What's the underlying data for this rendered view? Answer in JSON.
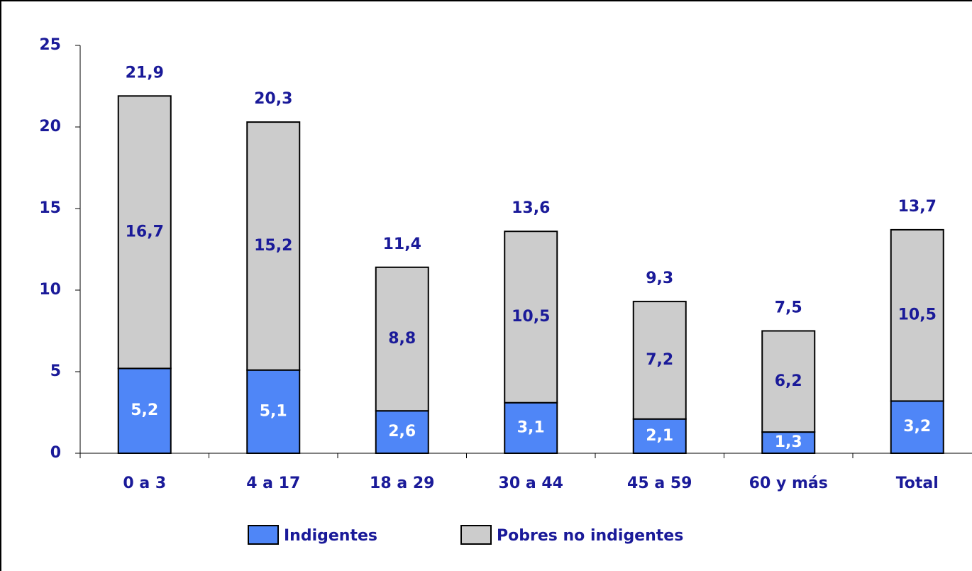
{
  "chart_data": {
    "type": "stacked-bar",
    "categories": [
      "0 a 3",
      "4 a 17",
      "18 a 29",
      "30 a 44",
      "45 a 59",
      "60 y más",
      "Total"
    ],
    "series": [
      {
        "name": "Indigentes",
        "color": "#4f86f7",
        "label_color": "#ffffff",
        "values": [
          5.2,
          5.1,
          2.6,
          3.1,
          2.1,
          1.3,
          3.2
        ],
        "value_labels": [
          "5,2",
          "5,1",
          "2,6",
          "3,1",
          "2,1",
          "1,3",
          "3,2"
        ]
      },
      {
        "name": "Pobres no indigentes",
        "color": "#cccccc",
        "label_color": "#1a1a99",
        "values": [
          16.7,
          15.2,
          8.8,
          10.5,
          7.2,
          6.2,
          10.5
        ],
        "value_labels": [
          "16,7",
          "15,2",
          "8,8",
          "10,5",
          "7,2",
          "6,2",
          "10,5"
        ]
      }
    ],
    "totals": {
      "values": [
        21.9,
        20.3,
        11.4,
        13.6,
        9.3,
        7.5,
        13.7
      ],
      "value_labels": [
        "21,9",
        "20,3",
        "11,4",
        "13,6",
        "9,3",
        "7,5",
        "13,7"
      ]
    },
    "ylim": [
      0,
      25
    ],
    "yticks": [
      0,
      5,
      10,
      15,
      20,
      25
    ],
    "grid": false,
    "legend": "bottom"
  }
}
